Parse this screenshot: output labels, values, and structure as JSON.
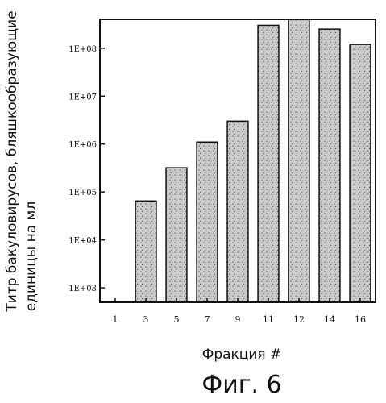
{
  "chart_data": {
    "type": "bar",
    "categories": [
      "1",
      "3",
      "5",
      "7",
      "9",
      "11",
      "12",
      "14",
      "16"
    ],
    "values": [
      null,
      65000,
      320000,
      1100000,
      3000000,
      300000000,
      400000000,
      250000000,
      120000000
    ],
    "ylabel_lines": [
      "Титр бакуловирусов, бляшкообразующие",
      "единицы на мл"
    ],
    "xlabel": "Фракция #",
    "y_scale": "log",
    "ylim": [
      500,
      400000000
    ],
    "y_ticks": [
      {
        "value": 1000,
        "label": "1E+03"
      },
      {
        "value": 10000,
        "label": "1E+04"
      },
      {
        "value": 100000,
        "label": "1E+05"
      },
      {
        "value": 1000000,
        "label": "1E+06"
      },
      {
        "value": 10000000,
        "label": "1E+07"
      },
      {
        "value": 100000000,
        "label": "1E+08"
      }
    ],
    "grid": false,
    "bar_fill": "#c8c8c8"
  },
  "figure": {
    "caption": "Фиг. 6"
  }
}
